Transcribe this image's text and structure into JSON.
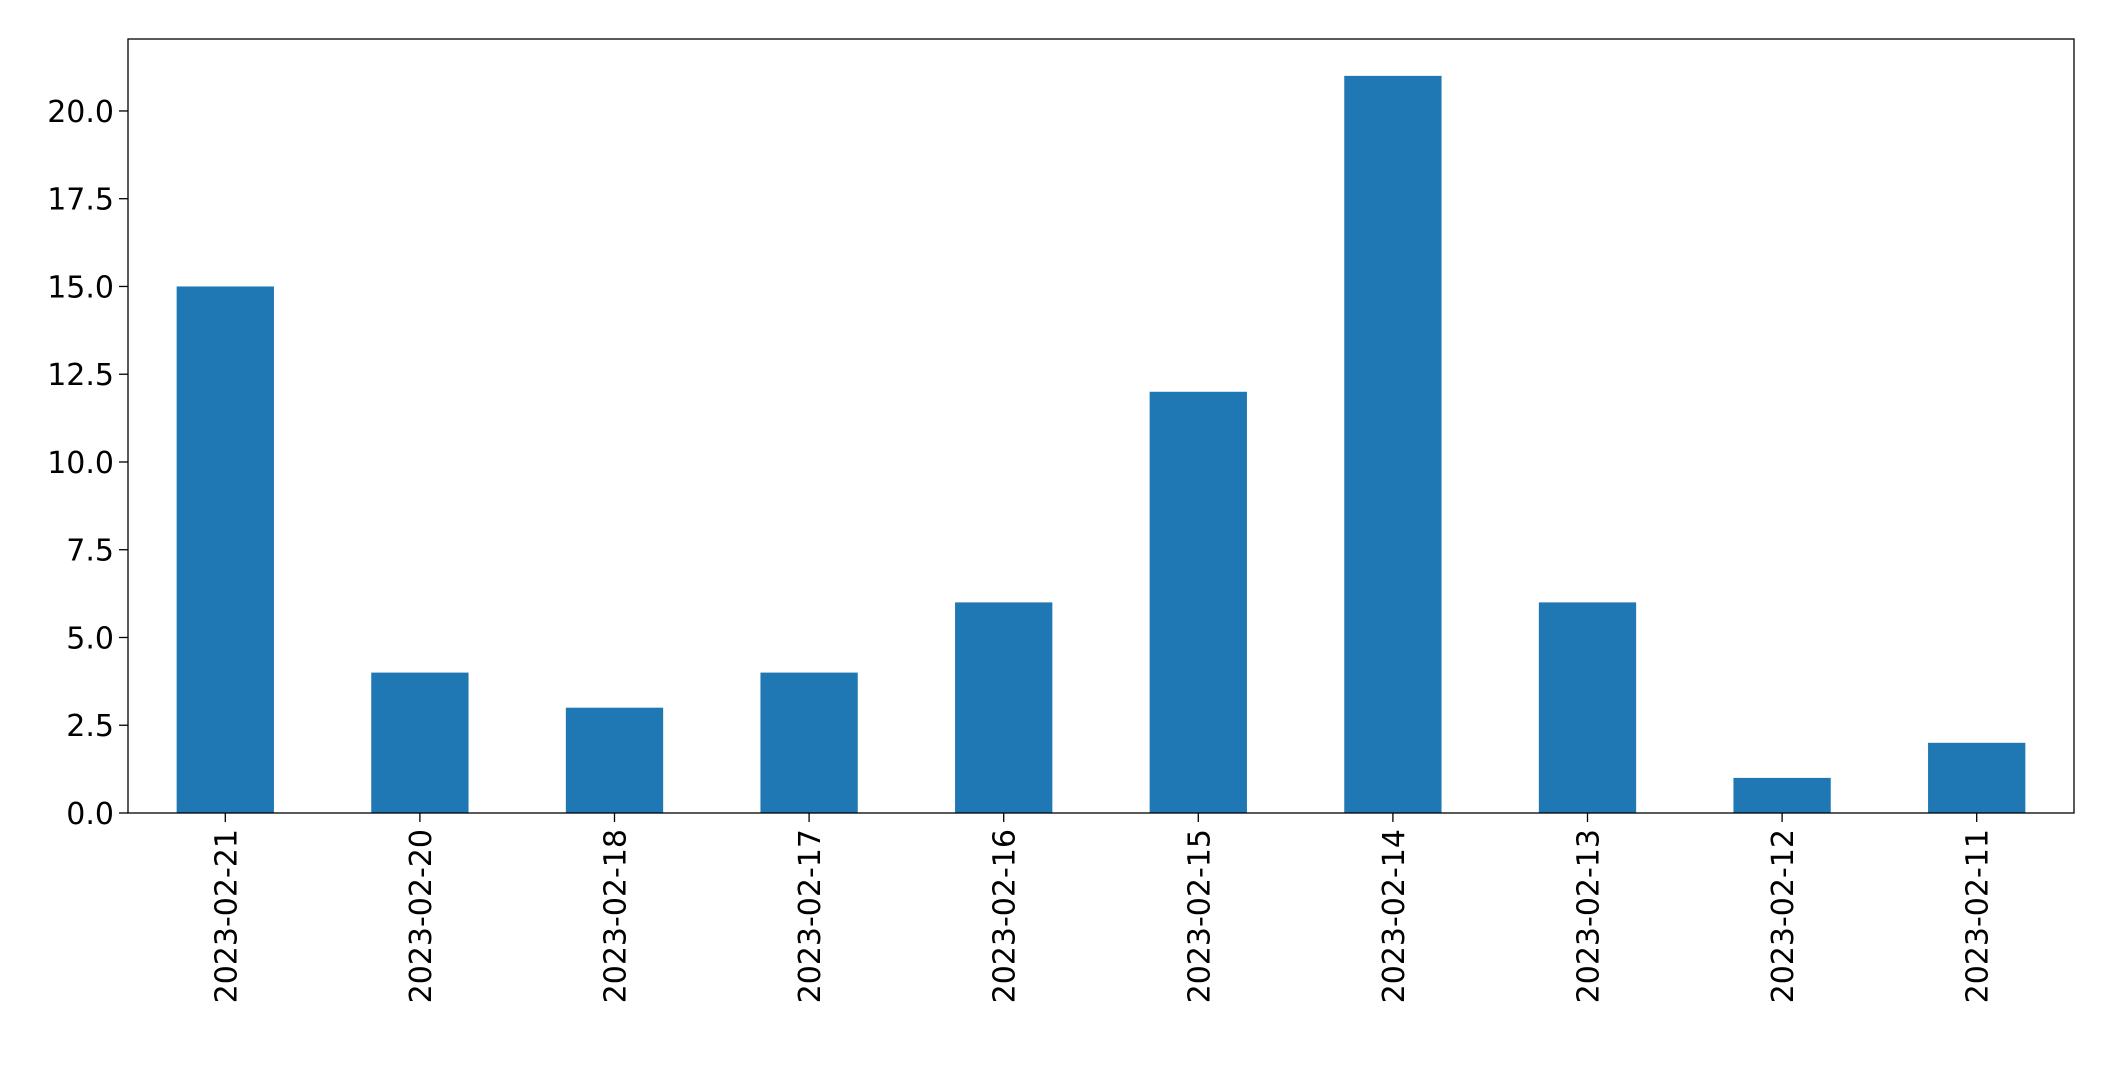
{
  "chart_data": {
    "type": "bar",
    "categories": [
      "2023-02-21",
      "2023-02-20",
      "2023-02-18",
      "2023-02-17",
      "2023-02-16",
      "2023-02-15",
      "2023-02-14",
      "2023-02-13",
      "2023-02-12",
      "2023-02-11"
    ],
    "values": [
      15,
      4,
      3,
      4,
      6,
      12,
      21,
      6,
      1,
      2
    ],
    "color": "#1f77b4",
    "ylim": [
      0,
      22.05
    ],
    "yticks": [
      {
        "value": 0,
        "label": "0.0"
      },
      {
        "value": 2.5,
        "label": "2.5"
      },
      {
        "value": 5,
        "label": "5.0"
      },
      {
        "value": 7.5,
        "label": "7.5"
      },
      {
        "value": 10,
        "label": "10.0"
      },
      {
        "value": 12.5,
        "label": "12.5"
      },
      {
        "value": 15,
        "label": "15.0"
      },
      {
        "value": 17.5,
        "label": "17.5"
      },
      {
        "value": 20,
        "label": "20.0"
      }
    ],
    "grid": false
  }
}
